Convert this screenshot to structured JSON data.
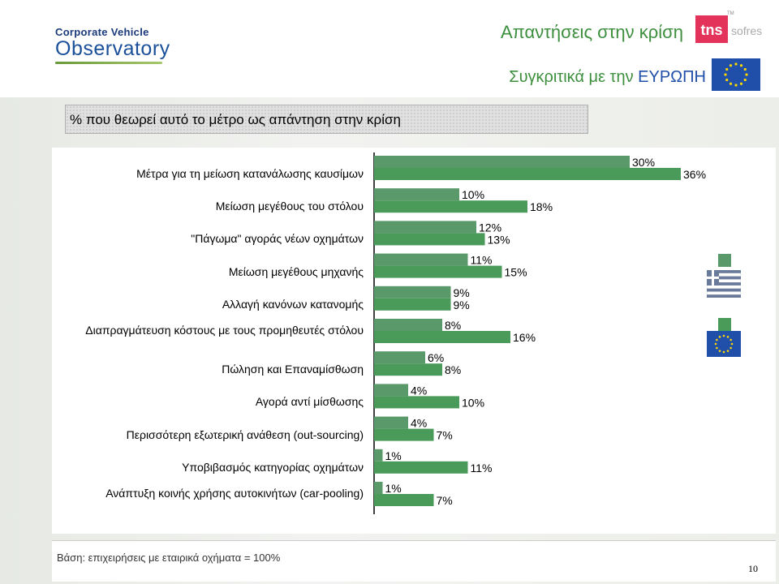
{
  "logo": {
    "line1": "Corporate Vehicle",
    "line2": "Observatory"
  },
  "header": {
    "title": "Απαντήσεις στην κρίση",
    "subtitle_a": "Συγκριτικά με την",
    "subtitle_b": "ΕΥΡΩΠΗ",
    "brand": "tns",
    "brand_b": "sofres",
    "brand_tm": "TM"
  },
  "question": "% που θεωρεί αυτό το μέτρο ως απάντηση στην κρίση",
  "footer": {
    "base": "Βάση: επιχειρήσεις με εταιρικά οχήματα = 100%",
    "page": "10"
  },
  "colors": {
    "greece": "#5a9a6a",
    "europe": "#4a9a5a",
    "title_green": "#3d8f3e",
    "title_blue": "#1f4fa8"
  },
  "icons": [
    "greece-flag-icon",
    "eu-flag-icon"
  ],
  "chart_data": {
    "type": "bar",
    "orientation": "horizontal",
    "categories": [
      "Μέτρα για τη μείωση κατανάλωσης καυσίμων",
      "Μείωση μεγέθους του στόλου",
      "\"Πάγωμα\" αγοράς νέων οχημάτων",
      "Μείωση μεγέθους μηχανής",
      "Αλλαγή κανόνων κατανομής",
      "Διαπραγμάτευση κόστους με τους προμηθευτές στόλου",
      "Πώληση και Επαναμίσθωση",
      "Αγορά αντί μίσθωσης",
      "Περισσότερη εξωτερική ανάθεση (out-sourcing)",
      "Υποβιβασμός κατηγορίας οχημάτων",
      "Ανάπτυξη κοινής χρήσης αυτοκινήτων (car-pooling)"
    ],
    "series": [
      {
        "legend": "greece",
        "color": "#5a9a6a",
        "values": [
          30,
          10,
          12,
          11,
          9,
          8,
          6,
          4,
          4,
          1,
          1
        ],
        "labels": [
          "30%",
          "10%",
          "12%",
          "11%",
          "9%",
          "8%",
          "6%",
          "4%",
          "4%",
          "1%",
          "1%"
        ]
      },
      {
        "legend": "europe",
        "color": "#4a9a5a",
        "values": [
          36,
          18,
          13,
          15,
          9,
          16,
          8,
          10,
          7,
          11,
          7
        ],
        "labels": [
          "36%",
          "18%",
          "13%",
          "15%",
          "9%",
          "16%",
          "8%",
          "10%",
          "7%",
          "11%",
          "7%"
        ]
      }
    ],
    "xlim": [
      0,
      40
    ],
    "grid": false,
    "legend_position": "right"
  }
}
